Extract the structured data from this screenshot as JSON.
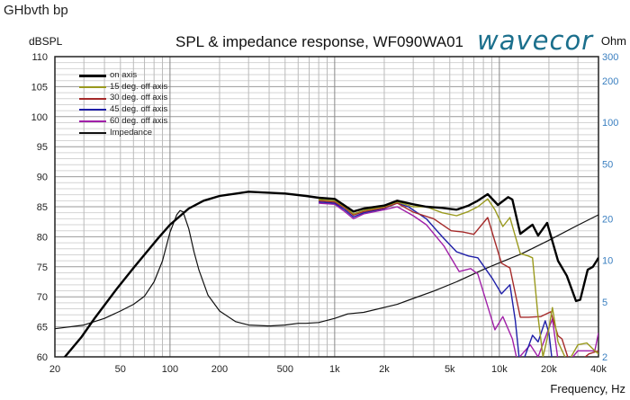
{
  "top_note": "GHbvth bp",
  "logo_text": "wavecor",
  "chart_data": {
    "type": "line",
    "title": "SPL & impedance response, WF090WA01",
    "ylabel": "dBSPL",
    "y2label": "Ohm",
    "xlabel": "Frequency, Hz",
    "xscale": "log",
    "xlim": [
      20,
      40000
    ],
    "ylim": [
      60,
      110
    ],
    "y2scale": "log",
    "y2lim": [
      2,
      300
    ],
    "grid": true,
    "legend_position": "top-left",
    "x_ticks": [
      {
        "v": 20,
        "l": "20"
      },
      {
        "v": 50,
        "l": "50"
      },
      {
        "v": 100,
        "l": "100"
      },
      {
        "v": 200,
        "l": "200"
      },
      {
        "v": 500,
        "l": "500"
      },
      {
        "v": 1000,
        "l": "1k"
      },
      {
        "v": 2000,
        "l": "2k"
      },
      {
        "v": 5000,
        "l": "5k"
      },
      {
        "v": 10000,
        "l": "10k"
      },
      {
        "v": 20000,
        "l": "20k"
      },
      {
        "v": 40000,
        "l": "40k"
      }
    ],
    "y_ticks": [
      60,
      65,
      70,
      75,
      80,
      85,
      90,
      95,
      100,
      105,
      110
    ],
    "y2_ticks": [
      2,
      5,
      10,
      20,
      50,
      100,
      200,
      300
    ],
    "series": [
      {
        "name": "on axis",
        "color": "#000000",
        "axis": "left",
        "width": 2.4,
        "x": [
          20,
          23,
          29,
          35,
          48,
          60,
          70,
          85,
          100,
          130,
          160,
          200,
          300,
          500,
          670,
          800,
          1000,
          1150,
          1300,
          1500,
          2000,
          2400,
          3000,
          3600,
          4500,
          5500,
          6500,
          7400,
          8500,
          9800,
          11300,
          12000,
          13400,
          15000,
          15900,
          17200,
          19500,
          22700,
          25700,
          29200,
          31000,
          34400,
          37000,
          39000,
          40000
        ],
        "y": [
          58,
          60,
          63.3,
          66.5,
          71.5,
          74.8,
          77,
          79.8,
          82,
          84.7,
          86,
          86.8,
          87.5,
          87.2,
          86.8,
          86.5,
          86.3,
          85.2,
          84.2,
          84.7,
          85.2,
          86,
          85.4,
          85,
          84.8,
          84.5,
          85.2,
          86,
          87.1,
          85.3,
          86.6,
          86.2,
          80.5,
          81.5,
          82,
          80.2,
          82.3,
          76,
          73.5,
          69.3,
          69.5,
          74.5,
          75,
          76,
          76.5
        ]
      },
      {
        "name": "15 deg. off axis",
        "color": "#9a9a1e",
        "axis": "left",
        "width": 1.4,
        "x": [
          800,
          1000,
          1150,
          1300,
          1500,
          2000,
          2400,
          3000,
          3600,
          4500,
          5500,
          6500,
          7400,
          8500,
          9400,
          10500,
          11600,
          13400,
          15000,
          15900,
          17200,
          18400,
          19500,
          21000,
          22700,
          26000,
          30000,
          34000,
          38000,
          40000
        ],
        "y": [
          86.2,
          86,
          85,
          83.8,
          84.4,
          85,
          85.8,
          85,
          85,
          84,
          83.5,
          84.2,
          85,
          86.3,
          84.5,
          81.7,
          83.2,
          77.2,
          76.8,
          76.5,
          66.6,
          60,
          63,
          68.2,
          62.5,
          59,
          62,
          62.3,
          61,
          60.5
        ]
      },
      {
        "name": "30 deg. off axis",
        "color": "#a52a2a",
        "axis": "left",
        "width": 1.4,
        "x": [
          800,
          1000,
          1150,
          1300,
          1500,
          2000,
          2400,
          3000,
          4000,
          5100,
          6000,
          7000,
          8500,
          10300,
          11600,
          13400,
          15000,
          17800,
          20500,
          22700,
          24000,
          26000,
          30000,
          35000,
          40000
        ],
        "y": [
          86,
          85.8,
          84.8,
          83.6,
          84.2,
          84.8,
          85.6,
          84.1,
          83,
          81,
          80.8,
          80.4,
          83.2,
          75.6,
          74.8,
          66.6,
          66.6,
          66.7,
          67.5,
          63.5,
          63,
          60,
          59,
          60.5,
          61
        ]
      },
      {
        "name": "45 deg. off axis",
        "color": "#1f1fa8",
        "axis": "left",
        "width": 1.4,
        "x": [
          800,
          1000,
          1150,
          1300,
          1500,
          2000,
          2400,
          2800,
          3600,
          4500,
          5500,
          6500,
          7400,
          9100,
          10300,
          11600,
          12500,
          13400,
          15900,
          17200,
          19000,
          20000,
          21000,
          26000,
          30000,
          40000
        ],
        "y": [
          85.8,
          85.6,
          84.5,
          83.3,
          84,
          84.7,
          85.6,
          85,
          83,
          80,
          77.5,
          76.8,
          76.5,
          73,
          70.5,
          72,
          66,
          58,
          63.6,
          62.5,
          66,
          64,
          59,
          58,
          58,
          59.5
        ]
      },
      {
        "name": "60 deg. off axis",
        "color": "#a020a8",
        "axis": "left",
        "width": 1.4,
        "x": [
          800,
          1000,
          1150,
          1300,
          1500,
          2000,
          2400,
          3000,
          3600,
          4600,
          5700,
          6700,
          7400,
          9400,
          10500,
          12000,
          12800,
          15400,
          17200,
          19500,
          21000,
          22700,
          26000,
          30000,
          38000,
          40000
        ],
        "y": [
          85.6,
          85.4,
          84.2,
          83,
          83.8,
          84.5,
          85,
          83.5,
          82,
          78.5,
          74.2,
          74.7,
          73.8,
          64.5,
          66.7,
          63,
          59.5,
          62,
          60,
          64,
          66.3,
          59.5,
          59,
          61,
          61,
          64
        ]
      },
      {
        "name": "Impedance",
        "color": "#111111",
        "axis": "right",
        "width": 1.2,
        "x": [
          20,
          30,
          40,
          50,
          60,
          70,
          80,
          90,
          100,
          110,
          115,
          120,
          130,
          140,
          150,
          170,
          200,
          250,
          300,
          400,
          500,
          600,
          670,
          800,
          1000,
          1200,
          1500,
          2400,
          3000,
          4000,
          5500,
          8000,
          10000,
          13700,
          20000,
          30000,
          40000
        ],
        "y": [
          3.2,
          3.4,
          3.8,
          4.3,
          4.8,
          5.5,
          7,
          9.9,
          16,
          21.5,
          23,
          22.5,
          17,
          11.5,
          8.5,
          5.6,
          4.3,
          3.6,
          3.4,
          3.35,
          3.4,
          3.5,
          3.5,
          3.55,
          3.8,
          4.1,
          4.2,
          4.8,
          5.3,
          6,
          7,
          8.6,
          9.6,
          11.2,
          14,
          18,
          21.4
        ]
      }
    ]
  }
}
